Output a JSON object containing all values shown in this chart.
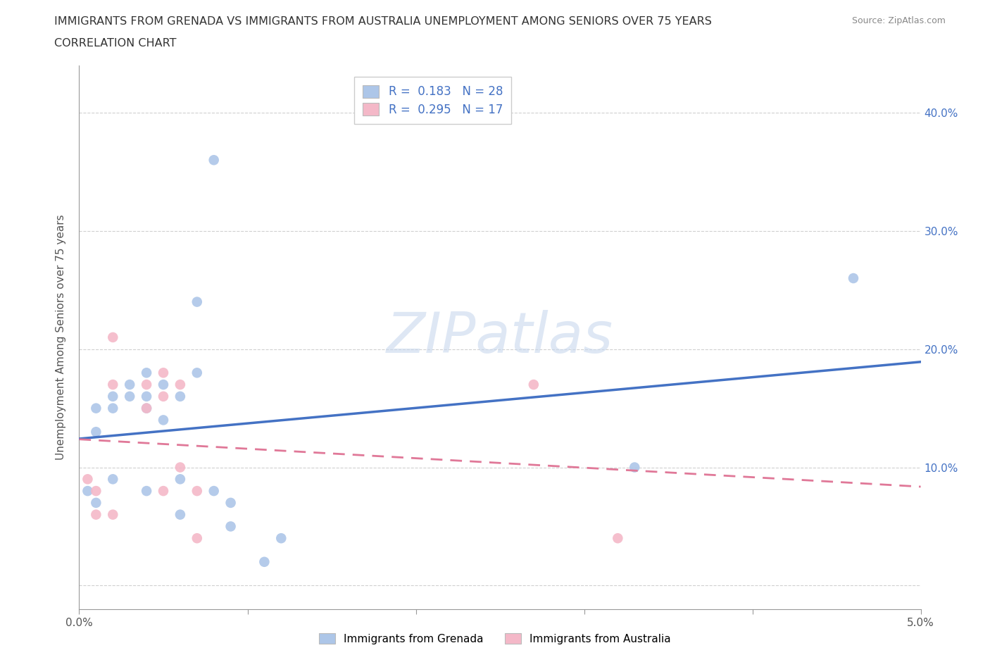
{
  "title_line1": "IMMIGRANTS FROM GRENADA VS IMMIGRANTS FROM AUSTRALIA UNEMPLOYMENT AMONG SENIORS OVER 75 YEARS",
  "title_line2": "CORRELATION CHART",
  "source_text": "Source: ZipAtlas.com",
  "ylabel": "Unemployment Among Seniors over 75 years",
  "xlim": [
    0.0,
    0.05
  ],
  "ylim": [
    -0.02,
    0.44
  ],
  "yticks": [
    0.0,
    0.1,
    0.2,
    0.3,
    0.4
  ],
  "xticks": [
    0.0,
    0.01,
    0.02,
    0.03,
    0.04,
    0.05
  ],
  "xtick_labels": [
    "0.0%",
    "",
    "",
    "",
    "",
    "5.0%"
  ],
  "ytick_labels_right": [
    "",
    "10.0%",
    "20.0%",
    "30.0%",
    "40.0%"
  ],
  "grenada_color": "#adc6e8",
  "australia_color": "#f4b8c8",
  "grenada_line_color": "#4472c4",
  "australia_line_color": "#e07898",
  "grenada_R": 0.183,
  "grenada_N": 28,
  "australia_R": 0.295,
  "australia_N": 17,
  "grenada_x": [
    0.0005,
    0.001,
    0.001,
    0.001,
    0.002,
    0.002,
    0.002,
    0.003,
    0.003,
    0.004,
    0.004,
    0.004,
    0.004,
    0.005,
    0.005,
    0.006,
    0.006,
    0.006,
    0.007,
    0.007,
    0.008,
    0.008,
    0.009,
    0.009,
    0.011,
    0.012,
    0.033,
    0.046
  ],
  "grenada_y": [
    0.08,
    0.15,
    0.13,
    0.07,
    0.16,
    0.15,
    0.09,
    0.17,
    0.16,
    0.18,
    0.16,
    0.15,
    0.08,
    0.17,
    0.14,
    0.16,
    0.09,
    0.06,
    0.24,
    0.18,
    0.36,
    0.08,
    0.07,
    0.05,
    0.02,
    0.04,
    0.1,
    0.26
  ],
  "australia_x": [
    0.0005,
    0.001,
    0.001,
    0.002,
    0.002,
    0.002,
    0.004,
    0.004,
    0.005,
    0.005,
    0.005,
    0.006,
    0.006,
    0.007,
    0.007,
    0.027,
    0.032
  ],
  "australia_y": [
    0.09,
    0.08,
    0.06,
    0.21,
    0.17,
    0.06,
    0.17,
    0.15,
    0.18,
    0.16,
    0.08,
    0.17,
    0.1,
    0.08,
    0.04,
    0.17,
    0.04
  ],
  "watermark": "ZIPatlas",
  "background_color": "#ffffff",
  "grid_color": "#d0d0d0",
  "legend_entry1": "R =  0.183   N = 28",
  "legend_entry2": "R =  0.295   N = 17",
  "bottom_legend_grenada": "Immigrants from Grenada",
  "bottom_legend_australia": "Immigrants from Australia"
}
